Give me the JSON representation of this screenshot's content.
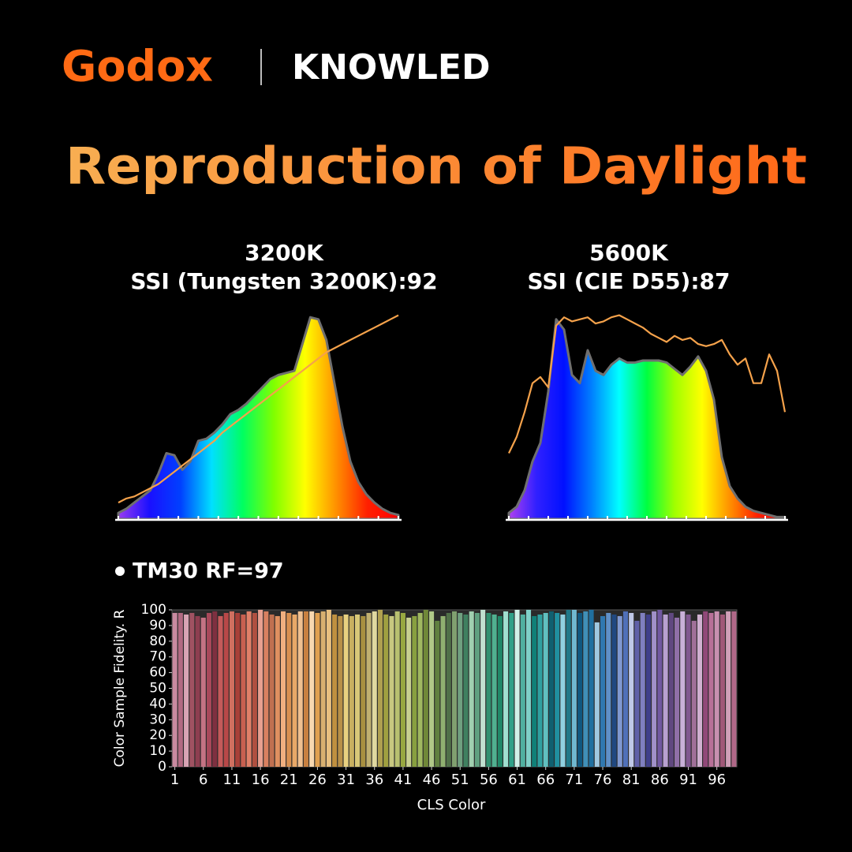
{
  "header": {
    "brand": "Godox",
    "product": "KNOWLED"
  },
  "title": "Reproduction of Daylight",
  "chart_data": [
    {
      "type": "area",
      "title": "3200K",
      "subtitle": "SSI (Tungsten 3200K):92",
      "ylim": [
        0,
        100
      ],
      "series": [
        {
          "colors": [
            "#9a3cf0",
            "#1a10ff",
            "#0040ff",
            "#00e0ff",
            "#00ff60",
            "#80ff00",
            "#ffff00",
            "#ff9000",
            "#ff2000",
            "#ff0000"
          ],
          "stroke": "#6f6f6f",
          "values": [
            3,
            5,
            8,
            11,
            14,
            22,
            32,
            31,
            24,
            28,
            38,
            39,
            42,
            46,
            51,
            53,
            56,
            60,
            64,
            68,
            70,
            71,
            72,
            85,
            98,
            97,
            87,
            66,
            45,
            28,
            18,
            12,
            8,
            5,
            3,
            2
          ]
        },
        {
          "color": "#f5a24b",
          "values": [
            8,
            10,
            11,
            13,
            15,
            17,
            20,
            23,
            26,
            29,
            32,
            35,
            38,
            42,
            45,
            48,
            51,
            54,
            57,
            60,
            63,
            66,
            69,
            72,
            75,
            78,
            81,
            83,
            85,
            87,
            89,
            91,
            93,
            95,
            97,
            99
          ]
        }
      ]
    },
    {
      "type": "area",
      "title": "5600K",
      "subtitle": "SSI (CIE D55):87",
      "ylim": [
        0,
        100
      ],
      "series": [
        {
          "colors": [
            "#b040f0",
            "#3020ff",
            "#0010ff",
            "#0080ff",
            "#00ffff",
            "#00ff40",
            "#a0ff00",
            "#ffff00",
            "#ff9000",
            "#ff2000",
            "#ff0000"
          ],
          "stroke": "#6f6f6f",
          "values": [
            3,
            6,
            14,
            28,
            37,
            62,
            97,
            92,
            70,
            66,
            82,
            72,
            70,
            75,
            78,
            76,
            76,
            77,
            77,
            77,
            76,
            73,
            70,
            74,
            79,
            72,
            58,
            30,
            16,
            10,
            6,
            4,
            3,
            2,
            1,
            1
          ]
        },
        {
          "color": "#f5a24b",
          "values": [
            32,
            40,
            52,
            66,
            69,
            64,
            94,
            98,
            96,
            97,
            98,
            95,
            96,
            98,
            99,
            97,
            95,
            93,
            90,
            88,
            86,
            89,
            87,
            88,
            85,
            84,
            85,
            87,
            80,
            75,
            78,
            66,
            66,
            80,
            72,
            52
          ]
        }
      ]
    },
    {
      "type": "bar",
      "title": "TM30 RF=97",
      "y_label": "Color Sample Fidelity. R",
      "x_label": "CLS Color",
      "xlim": [
        0.5,
        99.5
      ],
      "xticks": [
        1,
        6,
        11,
        16,
        21,
        26,
        31,
        36,
        41,
        46,
        51,
        56,
        61,
        66,
        71,
        76,
        81,
        86,
        91,
        96
      ],
      "ylim": [
        0,
        100
      ],
      "yticks": [
        0,
        10,
        20,
        30,
        40,
        50,
        60,
        70,
        80,
        90,
        100
      ],
      "values": [
        98,
        98,
        97,
        98,
        96,
        95,
        98,
        99,
        96,
        98,
        99,
        98,
        97,
        99,
        98,
        100,
        99,
        97,
        96,
        99,
        98,
        97,
        99,
        99,
        99,
        98,
        99,
        100,
        97,
        96,
        97,
        96,
        97,
        96,
        98,
        99,
        100,
        97,
        96,
        99,
        98,
        95,
        96,
        98,
        100,
        99,
        93,
        96,
        98,
        99,
        98,
        97,
        99,
        98,
        100,
        98,
        97,
        96,
        99,
        98,
        100,
        97,
        100,
        96,
        97,
        98,
        99,
        98,
        97,
        100,
        100,
        98,
        99,
        100,
        92,
        96,
        98,
        97,
        96,
        99,
        98,
        93,
        98,
        97,
        99,
        100,
        97,
        98,
        95,
        99,
        97,
        93,
        97,
        99,
        98,
        99,
        97,
        99,
        99
      ],
      "colors": [
        "#c98aa0",
        "#b26a82",
        "#d8a4b4",
        "#a05262",
        "#8e3e50",
        "#c47384",
        "#a8485a",
        "#7e3040",
        "#c45a5a",
        "#b84848",
        "#d07060",
        "#a84038",
        "#c86050",
        "#e08068",
        "#b05040",
        "#e8a090",
        "#d88060",
        "#c07050",
        "#e09060",
        "#f0b080",
        "#d89050",
        "#e8a868",
        "#f0c090",
        "#c88040",
        "#f8d8b0",
        "#e0a050",
        "#d8b070",
        "#e8c080",
        "#c09040",
        "#b89048",
        "#e8d080",
        "#c8b060",
        "#d8c878",
        "#a89040",
        "#c0b070",
        "#e0d8a0",
        "#b0a050",
        "#a0a040",
        "#c8c880",
        "#b8c070",
        "#98a840",
        "#c8d090",
        "#88a040",
        "#a0b860",
        "#708838",
        "#b0c888",
        "#608040",
        "#90b070",
        "#507048",
        "#80a070",
        "#70a080",
        "#408060",
        "#a0d0b0",
        "#60a080",
        "#c0e0d0",
        "#309070",
        "#50b090",
        "#208868",
        "#a0e0d0",
        "#30a088",
        "#d0f0e8",
        "#50b0a0",
        "#80d0c8",
        "#108078",
        "#30a0a0",
        "#60c0c0",
        "#106070",
        "#2090a0",
        "#90d0e0",
        "#207888",
        "#70b8d0",
        "#105880",
        "#4090b8",
        "#2070a0",
        "#a0c8e0",
        "#3078b0",
        "#6090c8",
        "#204880",
        "#8098d0",
        "#5070b8",
        "#c0c8e8",
        "#6060a8",
        "#8080c0",
        "#40408a",
        "#a090c8",
        "#7058a0",
        "#b8a0d0",
        "#604880",
        "#9070a8",
        "#c8b0d8",
        "#805890",
        "#a07098",
        "#d0b0d0",
        "#904878",
        "#b87098",
        "#c890b0",
        "#a05878",
        "#d0a0b8",
        "#b06888"
      ]
    }
  ]
}
